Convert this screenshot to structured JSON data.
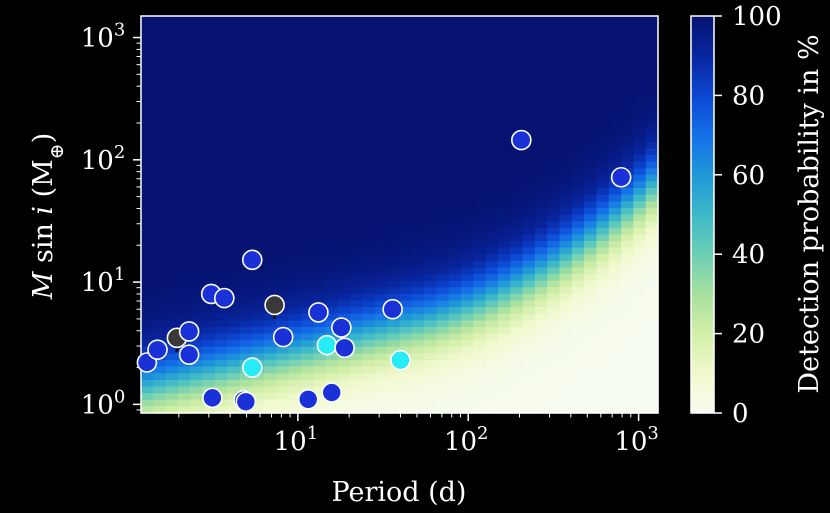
{
  "chart_data": {
    "type": "scatter",
    "x_scale": "log",
    "y_scale": "log",
    "xlim": [
      1.2,
      1300
    ],
    "ylim": [
      0.85,
      1500
    ],
    "x_ticks": [
      10,
      100,
      1000
    ],
    "y_ticks": [
      1,
      10,
      100,
      1000
    ],
    "xlabel": "Period (d)",
    "ylabel_parts": {
      "m": "M",
      "sin": " sin ",
      "i": "i",
      "unit": " (M",
      "sym": "⊕",
      "close": ")"
    },
    "colorbar": {
      "label": "Detection probability in %",
      "ticks": [
        "0",
        "20",
        "40",
        "60",
        "80",
        "100"
      ],
      "range": [
        0,
        100
      ],
      "colormap": "GnBu"
    },
    "grid": false,
    "points": [
      {
        "x": 1.3,
        "y": 2.2,
        "kind": "blue"
      },
      {
        "x": 1.5,
        "y": 2.8,
        "kind": "blue"
      },
      {
        "x": 1.95,
        "y": 3.5,
        "kind": "dark"
      },
      {
        "x": 2.3,
        "y": 3.95,
        "kind": "blue"
      },
      {
        "x": 2.3,
        "y": 2.55,
        "kind": "blue"
      },
      {
        "x": 3.1,
        "y": 8.0,
        "kind": "blue"
      },
      {
        "x": 3.7,
        "y": 7.4,
        "kind": "blue"
      },
      {
        "x": 3.15,
        "y": 1.13,
        "kind": "blue"
      },
      {
        "x": 4.8,
        "y": 1.08,
        "kind": "blue"
      },
      {
        "x": 4.95,
        "y": 1.05,
        "kind": "blue"
      },
      {
        "x": 5.4,
        "y": 15.2,
        "kind": "blue"
      },
      {
        "x": 5.4,
        "y": 2.0,
        "kind": "cyan"
      },
      {
        "x": 7.3,
        "y": 6.5,
        "kind": "dark"
      },
      {
        "x": 8.2,
        "y": 3.55,
        "kind": "blue"
      },
      {
        "x": 11.5,
        "y": 1.1,
        "kind": "blue"
      },
      {
        "x": 13.2,
        "y": 5.65,
        "kind": "blue"
      },
      {
        "x": 14.8,
        "y": 3.05,
        "kind": "cyan"
      },
      {
        "x": 15.8,
        "y": 1.25,
        "kind": "blue"
      },
      {
        "x": 18.0,
        "y": 4.25,
        "kind": "blue"
      },
      {
        "x": 18.8,
        "y": 2.9,
        "kind": "blue"
      },
      {
        "x": 36.0,
        "y": 6.0,
        "kind": "blue"
      },
      {
        "x": 40.0,
        "y": 2.3,
        "kind": "cyan"
      },
      {
        "x": 205,
        "y": 145,
        "kind": "blue"
      },
      {
        "x": 790,
        "y": 72,
        "kind": "blue"
      }
    ],
    "colors": {
      "blue": "#1b31d8",
      "cyan": "#27ecf5",
      "dark": "#393939",
      "marker_edge": "#ffffff",
      "background": "#000000",
      "text": "#ffffff"
    }
  }
}
